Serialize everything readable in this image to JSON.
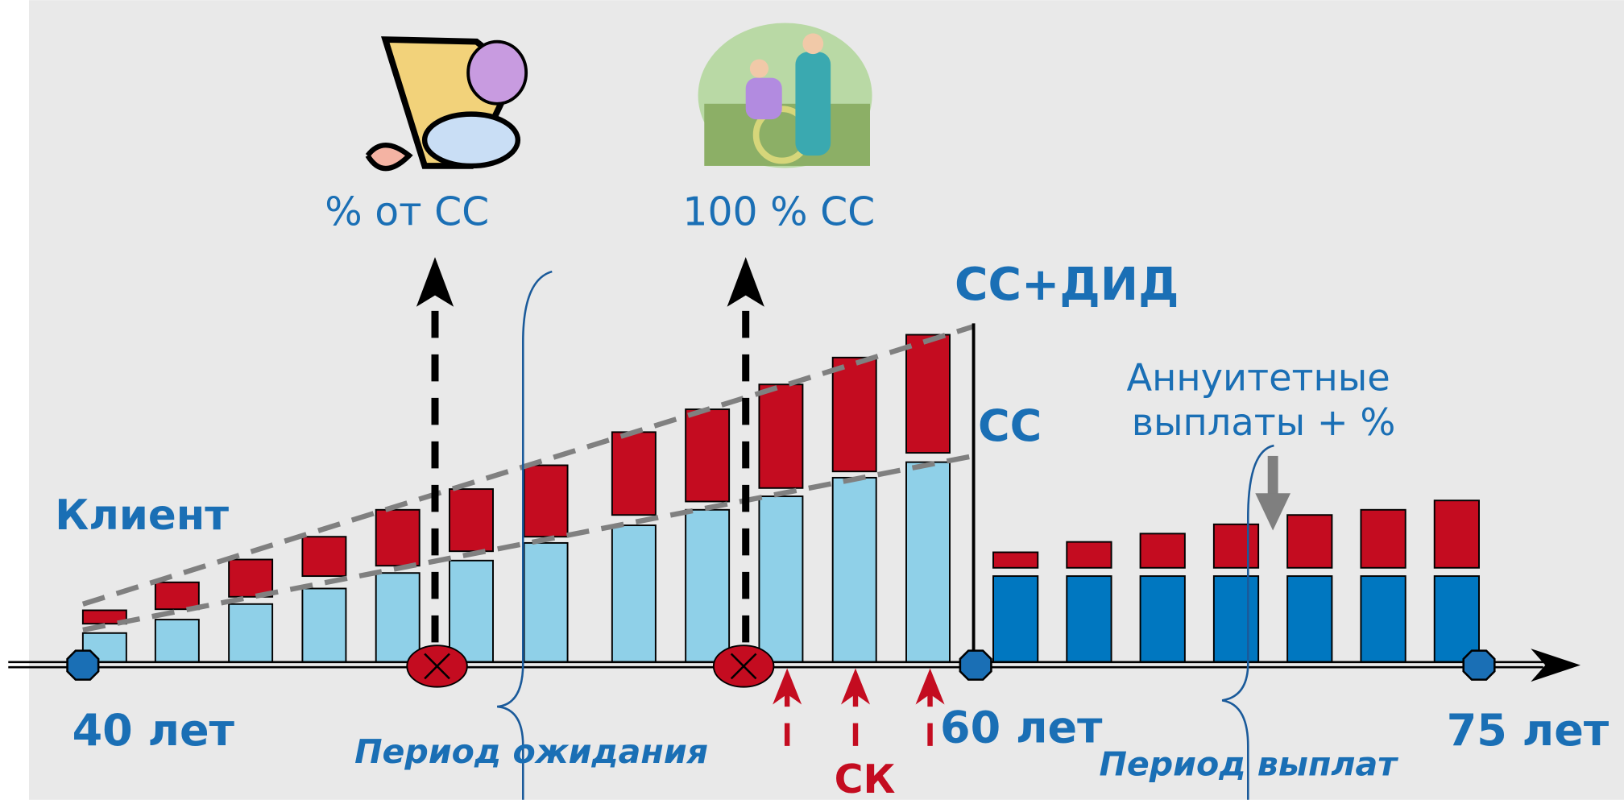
{
  "labels": {
    "partial_benefit": "% от СС",
    "full_benefit": "100 % СС",
    "sum_plus_income": "СС+ДИД",
    "sum_insured": "СС",
    "annuity_line1": "Аннуитетные",
    "annuity_line2": "выплаты + %",
    "client": "Клиент",
    "age_start": "40 лет",
    "age_retire": "60 лет",
    "age_end": "75 лет",
    "waiting_period": "Период  ожидания",
    "payout_period": "Период выплат",
    "sk": "СК"
  }
}
